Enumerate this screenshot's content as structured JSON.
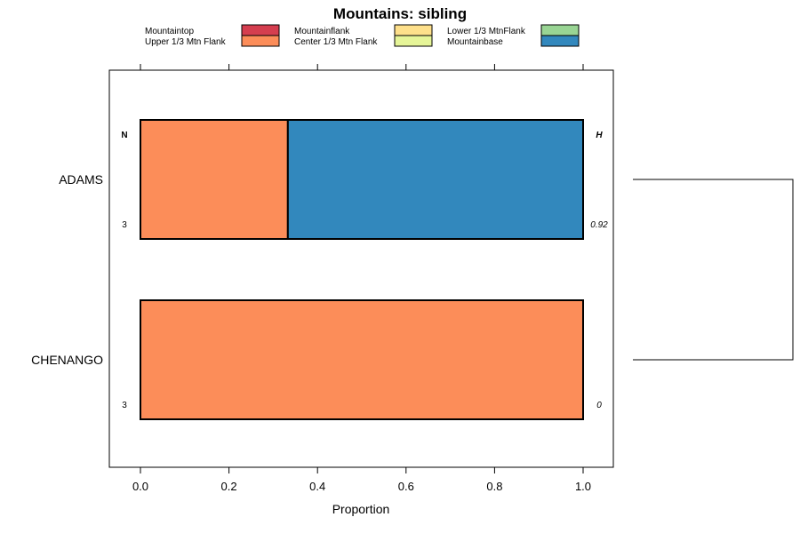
{
  "chart_data": {
    "type": "bar",
    "orientation": "horizontal",
    "stacked": true,
    "title": "Mountains: sibling",
    "xlabel": "Proportion",
    "ylabel": "",
    "xlim": [
      0,
      1
    ],
    "xticks": [
      "0.0",
      "0.2",
      "0.4",
      "0.6",
      "0.8",
      "1.0"
    ],
    "categories": [
      "ADAMS",
      "CHENANGO"
    ],
    "series": [
      {
        "name": "Mountaintop",
        "color": "#d53e4f",
        "values": [
          0,
          0
        ]
      },
      {
        "name": "Upper 1/3 Mtn Flank",
        "color": "#fc8d59",
        "values": [
          0.333,
          1.0
        ]
      },
      {
        "name": "Mountainflank",
        "color": "#fee08b",
        "values": [
          0,
          0
        ]
      },
      {
        "name": "Center 1/3 Mtn Flank",
        "color": "#e6f598",
        "values": [
          0,
          0
        ]
      },
      {
        "name": "Lower 1/3 MtnFlank",
        "color": "#99d594",
        "values": [
          0,
          0
        ]
      },
      {
        "name": "Mountainbase",
        "color": "#3288bd",
        "values": [
          0.667,
          0
        ]
      }
    ],
    "n_header": "N",
    "h_header": "H",
    "n_values": [
      "3",
      "3"
    ],
    "h_values": [
      "0.92",
      "0"
    ],
    "dendrogram": "joins ADAMS and CHENANGO"
  }
}
